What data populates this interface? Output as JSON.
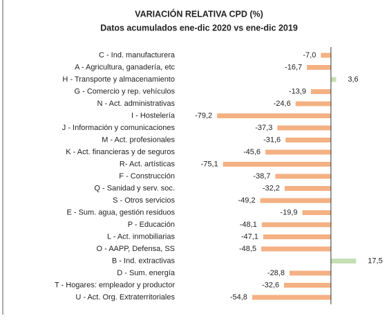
{
  "chart_data": {
    "type": "barh",
    "title": "VARIACIÓN RELATIVA CPD (%)",
    "subtitle": "Datos acumulados ene-dic 2020 vs ene-dic 2019",
    "categories": [
      "C - Ind. manufacturera",
      "A - Agricultura, ganadería, etc",
      "H - Transporte y almacenamiento",
      "G - Comercio y rep. vehículos",
      "N - Act. administrativas",
      "I - Hostelería",
      "J - Información y comunicaciones",
      "M - Act. profesionales",
      "K - Act. financieras y de seguros",
      "R-  Act. artísticas",
      "F - Construcción",
      "Q - Sanidad y serv. soc.",
      "S - Otros servicios",
      "E - Sum. agua, gestión residuos",
      "P - Educación",
      "L - Act. inmobiliarias",
      "O - AAPP, Defensa, SS",
      "B - Ind. extractivas",
      "D - Sum. energía",
      "T - Hogares: empleador y productor",
      "U - Act. Org. Extraterritoriales"
    ],
    "values": [
      -7.0,
      -16.7,
      3.6,
      -13.9,
      -24.6,
      -79.2,
      -37.3,
      -31.6,
      -45.6,
      -75.1,
      -38.7,
      -32.2,
      -49.2,
      -19.9,
      -48.1,
      -47.1,
      -48.5,
      17.5,
      -28.8,
      -32.6,
      -54.8
    ],
    "value_labels": [
      "-7,0",
      "-16,7",
      "3,6",
      "-13,9",
      "-24,6",
      "-79,2",
      "-37,3",
      "-31,6",
      "-45,6",
      "-75,1",
      "-38,7",
      "-32,2",
      "-49,2",
      "-19,9",
      "-48,1",
      "-47,1",
      "-48,5",
      "17,5",
      "-28,8",
      "-32,6",
      "-54,8"
    ],
    "color": "#f4b183",
    "positive_color": "#c5e0b4",
    "xlim": [
      -80,
      20
    ]
  }
}
